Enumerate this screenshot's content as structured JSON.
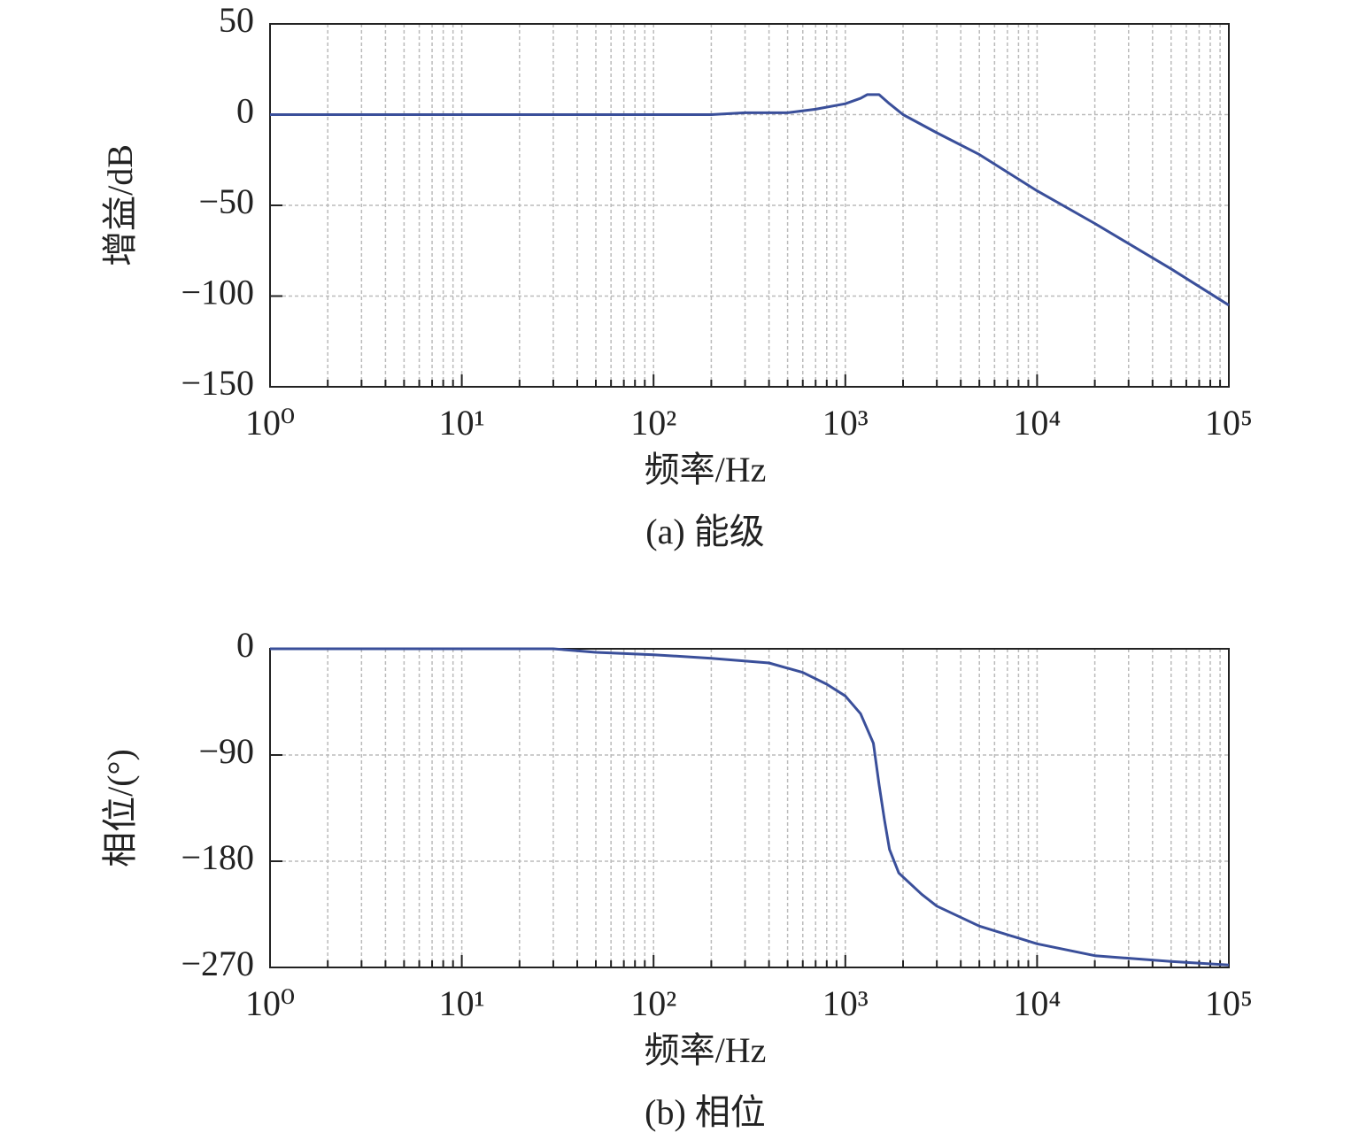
{
  "chart_data": [
    {
      "type": "line",
      "xscale": "log",
      "grid": true,
      "minor_grid": true,
      "color": "#3a4f9a",
      "ylabel": "增益/dB",
      "xlabel": "频率/Hz",
      "caption": "(a) 能级",
      "x": [
        1,
        10,
        100,
        200,
        300,
        500,
        700,
        1000,
        1200,
        1300,
        1500,
        1700,
        2000,
        3000,
        5000,
        10000,
        20000,
        50000,
        100000
      ],
      "values": [
        0,
        0,
        0,
        0,
        1,
        1,
        3,
        6,
        9,
        11,
        11,
        6,
        0,
        -10,
        -22,
        -42,
        -60,
        -85,
        -105
      ],
      "xlim": [
        1,
        100000
      ],
      "xticks": [
        {
          "value": 1,
          "label": "10⁰"
        },
        {
          "value": 10,
          "label": "10¹"
        },
        {
          "value": 100,
          "label": "10²"
        },
        {
          "value": 1000,
          "label": "10³"
        },
        {
          "value": 10000,
          "label": "10⁴"
        },
        {
          "value": 100000,
          "label": "10⁵"
        }
      ],
      "ylim": [
        -150,
        50
      ],
      "yticks": [
        50,
        0,
        {
          "value": -50,
          "label": "−50"
        },
        {
          "value": -100,
          "label": "−100"
        },
        {
          "value": -150,
          "label": "−150"
        }
      ]
    },
    {
      "type": "line",
      "xscale": "log",
      "grid": true,
      "minor_grid": true,
      "color": "#3a4f9a",
      "ylabel": "相位/(°)",
      "xlabel": "频率/Hz",
      "caption": "(b) 相位",
      "x": [
        1,
        10,
        30,
        50,
        100,
        200,
        400,
        600,
        800,
        1000,
        1200,
        1400,
        1500,
        1600,
        1700,
        1900,
        2500,
        3000,
        5000,
        10000,
        20000,
        50000,
        100000
      ],
      "values": [
        0,
        0,
        0,
        -3,
        -5,
        -8,
        -12,
        -20,
        -30,
        -40,
        -55,
        -80,
        -115,
        -145,
        -170,
        -190,
        -208,
        -218,
        -235,
        -250,
        -260,
        -265,
        -268
      ],
      "xlim": [
        1,
        100000
      ],
      "xticks": [
        {
          "value": 1,
          "label": "10⁰"
        },
        {
          "value": 10,
          "label": "10¹"
        },
        {
          "value": 100,
          "label": "10²"
        },
        {
          "value": 1000,
          "label": "10³"
        },
        {
          "value": 10000,
          "label": "10⁴"
        },
        {
          "value": 100000,
          "label": "10⁵"
        }
      ],
      "ylim": [
        -270,
        0
      ],
      "yticks": [
        0,
        {
          "value": -90,
          "label": "−90"
        },
        {
          "value": -180,
          "label": "−180"
        },
        {
          "value": -270,
          "label": "−270"
        }
      ]
    }
  ]
}
